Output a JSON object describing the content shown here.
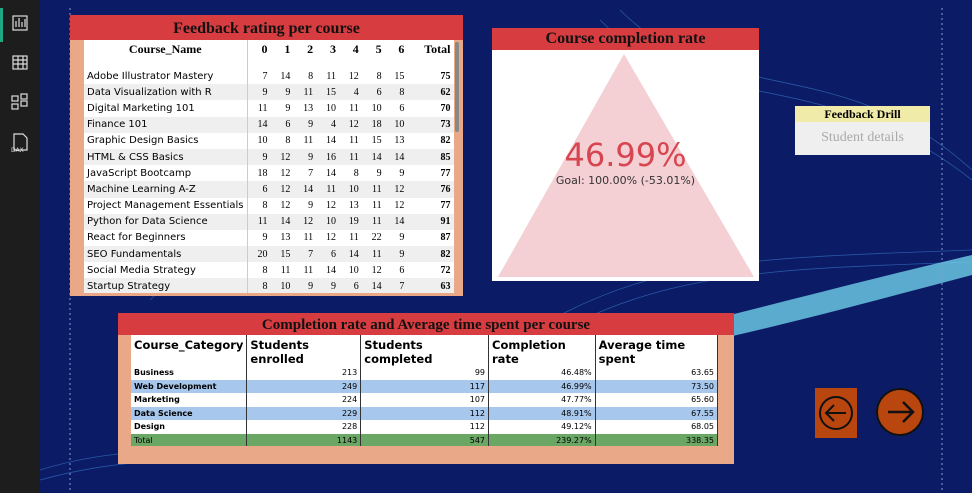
{
  "sidebar": {
    "icons": [
      "report",
      "table",
      "model",
      "DAX"
    ]
  },
  "feedback_table": {
    "title": "Feedback rating per course",
    "columns": [
      "Course_Name",
      "0",
      "1",
      "2",
      "3",
      "4",
      "5",
      "6",
      "Total"
    ],
    "rows": [
      [
        "Adobe Illustrator Mastery",
        7,
        14,
        8,
        11,
        12,
        8,
        15,
        75
      ],
      [
        "Data Visualization with R",
        9,
        9,
        11,
        15,
        4,
        6,
        8,
        62
      ],
      [
        "Digital Marketing 101",
        11,
        9,
        13,
        10,
        11,
        10,
        6,
        70
      ],
      [
        "Finance 101",
        14,
        6,
        9,
        4,
        12,
        18,
        10,
        73
      ],
      [
        "Graphic Design Basics",
        10,
        8,
        11,
        14,
        11,
        15,
        13,
        82
      ],
      [
        "HTML & CSS Basics",
        9,
        12,
        9,
        16,
        11,
        14,
        14,
        85
      ],
      [
        "JavaScript Bootcamp",
        18,
        12,
        7,
        14,
        8,
        9,
        9,
        77
      ],
      [
        "Machine Learning A-Z",
        6,
        12,
        14,
        11,
        10,
        11,
        12,
        76
      ],
      [
        "Project Management Essentials",
        8,
        12,
        9,
        12,
        13,
        11,
        12,
        77
      ],
      [
        "Python for Data Science",
        11,
        14,
        12,
        10,
        19,
        11,
        14,
        91
      ],
      [
        "React for Beginners",
        9,
        13,
        11,
        12,
        11,
        22,
        9,
        87
      ],
      [
        "SEO Fundamentals",
        20,
        15,
        7,
        6,
        14,
        11,
        9,
        82
      ],
      [
        "Social Media Strategy",
        8,
        11,
        11,
        14,
        10,
        12,
        6,
        72
      ],
      [
        "Startup Strategy",
        8,
        10,
        9,
        9,
        6,
        14,
        7,
        63
      ]
    ]
  },
  "completion_card": {
    "title": "Course completion rate",
    "value": "46.99%",
    "goal": "Goal: 100.00% (-53.01%)"
  },
  "drill_button": {
    "title": "Feedback Drill",
    "label": "Student details"
  },
  "category_table": {
    "title": "Completion rate and Average time spent per course",
    "columns": [
      "Course_Category",
      "Students enrolled",
      "Students completed",
      "Completion rate",
      "Average time spent"
    ],
    "rows": [
      [
        "Business",
        "213",
        "99",
        "46.48%",
        "63.65"
      ],
      [
        "Web Development",
        "249",
        "117",
        "46.99%",
        "73.50"
      ],
      [
        "Marketing",
        "224",
        "107",
        "47.77%",
        "65.60"
      ],
      [
        "Data Science",
        "229",
        "112",
        "48.91%",
        "67.55"
      ],
      [
        "Design",
        "228",
        "112",
        "49.12%",
        "68.05"
      ]
    ],
    "total": [
      "Total",
      "1143",
      "547",
      "239.27%",
      "338.35"
    ]
  }
}
